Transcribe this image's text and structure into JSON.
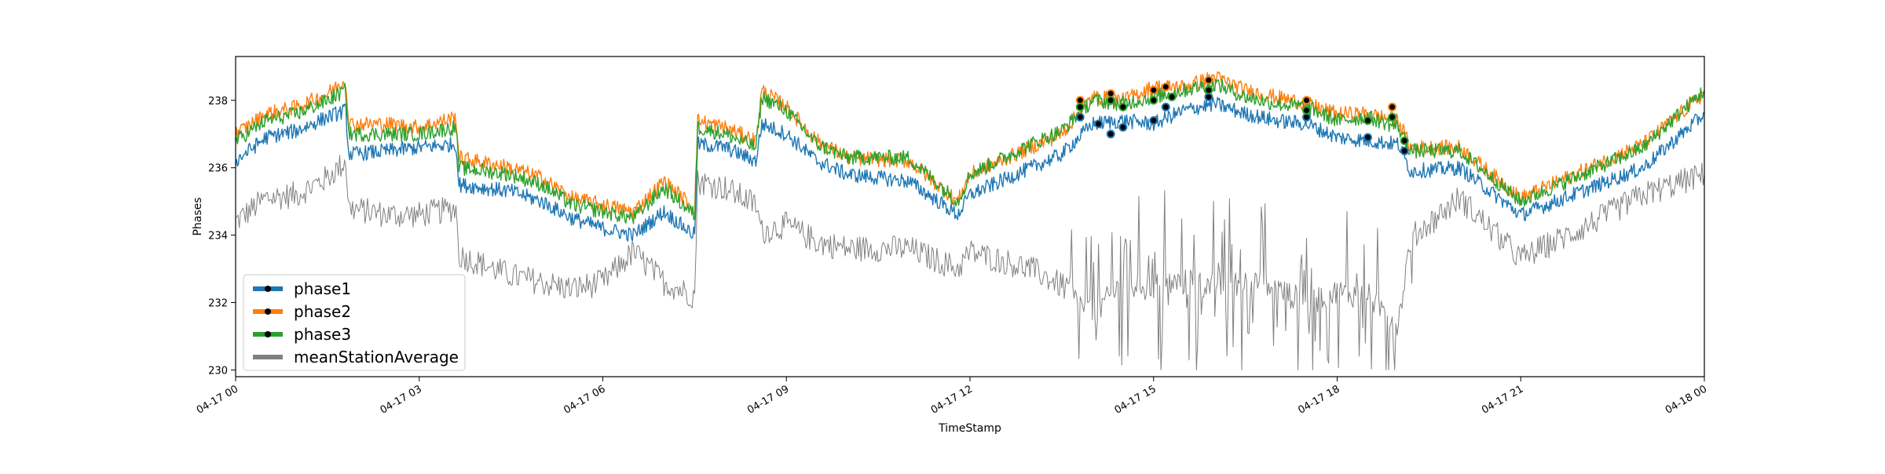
{
  "chart_data": {
    "type": "line",
    "title": "",
    "xlabel": "TimeStamp",
    "ylabel": "Phases",
    "x_range": [
      "04-17 00",
      "04-18 00"
    ],
    "ylim": [
      229.8,
      239.3
    ],
    "x_ticks": [
      {
        "label": "04-17 00",
        "hour": 0
      },
      {
        "label": "04-17 03",
        "hour": 3
      },
      {
        "label": "04-17 06",
        "hour": 6
      },
      {
        "label": "04-17 09",
        "hour": 9
      },
      {
        "label": "04-17 12",
        "hour": 12
      },
      {
        "label": "04-17 15",
        "hour": 15
      },
      {
        "label": "04-17 18",
        "hour": 18
      },
      {
        "label": "04-17 21",
        "hour": 21
      },
      {
        "label": "04-18 00",
        "hour": 24
      }
    ],
    "y_ticks": [
      230,
      232,
      234,
      236,
      238
    ],
    "grid": false,
    "legend": {
      "placement": "lower-left"
    },
    "series": [
      {
        "name": "phase1",
        "color": "#1f77b4",
        "points": [
          [
            0,
            236.2
          ],
          [
            0.5,
            236.9
          ],
          [
            1,
            237.1
          ],
          [
            1.5,
            237.5
          ],
          [
            1.8,
            237.7
          ],
          [
            1.85,
            236.4
          ],
          [
            2.5,
            236.5
          ],
          [
            3,
            236.6
          ],
          [
            3.6,
            236.7
          ],
          [
            3.65,
            235.5
          ],
          [
            4.5,
            235.3
          ],
          [
            5,
            235.0
          ],
          [
            5.5,
            234.5
          ],
          [
            6,
            234.2
          ],
          [
            6.5,
            234.0
          ],
          [
            7,
            234.7
          ],
          [
            7.5,
            234.0
          ],
          [
            7.55,
            236.7
          ],
          [
            8,
            236.6
          ],
          [
            8.5,
            236.2
          ],
          [
            8.6,
            237.3
          ],
          [
            9,
            237.0
          ],
          [
            9.5,
            236.2
          ],
          [
            10,
            235.8
          ],
          [
            11,
            235.6
          ],
          [
            11.8,
            234.6
          ],
          [
            12,
            235.2
          ],
          [
            13,
            236.0
          ],
          [
            13.5,
            236.4
          ],
          [
            14,
            237.3
          ],
          [
            14.5,
            237.4
          ],
          [
            15,
            237.3
          ],
          [
            15.5,
            237.7
          ],
          [
            16,
            237.9
          ],
          [
            16.5,
            237.6
          ],
          [
            17,
            237.4
          ],
          [
            17.5,
            237.3
          ],
          [
            18,
            236.9
          ],
          [
            18.5,
            236.8
          ],
          [
            19,
            236.7
          ],
          [
            19.2,
            235.9
          ],
          [
            20,
            236.0
          ],
          [
            21,
            234.6
          ],
          [
            22,
            235.3
          ],
          [
            23,
            236.0
          ],
          [
            24,
            237.6
          ]
        ]
      },
      {
        "name": "phase2",
        "color": "#ff7f0e",
        "points": [
          [
            0,
            237.0
          ],
          [
            0.5,
            237.6
          ],
          [
            1,
            237.8
          ],
          [
            1.5,
            238.2
          ],
          [
            1.8,
            238.6
          ],
          [
            1.85,
            237.3
          ],
          [
            2.5,
            237.3
          ],
          [
            3,
            237.2
          ],
          [
            3.6,
            237.5
          ],
          [
            3.65,
            236.3
          ],
          [
            4.5,
            236.0
          ],
          [
            5,
            235.7
          ],
          [
            5.5,
            235.1
          ],
          [
            6,
            234.9
          ],
          [
            6.5,
            234.7
          ],
          [
            7,
            235.6
          ],
          [
            7.5,
            234.8
          ],
          [
            7.55,
            237.4
          ],
          [
            8,
            237.2
          ],
          [
            8.5,
            236.8
          ],
          [
            8.6,
            238.3
          ],
          [
            9,
            237.8
          ],
          [
            9.5,
            236.8
          ],
          [
            10,
            236.3
          ],
          [
            11,
            236.2
          ],
          [
            11.8,
            235.0
          ],
          [
            12,
            235.8
          ],
          [
            13,
            236.6
          ],
          [
            13.5,
            237.0
          ],
          [
            14,
            238.1
          ],
          [
            14.5,
            238.0
          ],
          [
            15,
            238.4
          ],
          [
            15.5,
            238.4
          ],
          [
            16,
            238.7
          ],
          [
            16.5,
            238.3
          ],
          [
            17,
            238.1
          ],
          [
            17.5,
            237.9
          ],
          [
            18,
            237.6
          ],
          [
            18.5,
            237.6
          ],
          [
            19,
            237.4
          ],
          [
            19.2,
            236.6
          ],
          [
            20,
            236.6
          ],
          [
            21,
            235.1
          ],
          [
            22,
            235.9
          ],
          [
            23,
            236.7
          ],
          [
            24,
            238.2
          ]
        ]
      },
      {
        "name": "phase3",
        "color": "#2ca02c",
        "points": [
          [
            0,
            236.8
          ],
          [
            0.5,
            237.4
          ],
          [
            1,
            237.6
          ],
          [
            1.5,
            238.0
          ],
          [
            1.8,
            238.3
          ],
          [
            1.85,
            237.0
          ],
          [
            2.5,
            237.0
          ],
          [
            3,
            237.0
          ],
          [
            3.6,
            237.2
          ],
          [
            3.65,
            236.0
          ],
          [
            4.5,
            235.8
          ],
          [
            5,
            235.5
          ],
          [
            5.5,
            234.9
          ],
          [
            6,
            234.7
          ],
          [
            6.5,
            234.5
          ],
          [
            7,
            235.4
          ],
          [
            7.5,
            234.6
          ],
          [
            7.55,
            237.2
          ],
          [
            8,
            237.0
          ],
          [
            8.5,
            236.6
          ],
          [
            8.6,
            238.1
          ],
          [
            9,
            237.7
          ],
          [
            9.5,
            236.7
          ],
          [
            10,
            236.3
          ],
          [
            11,
            236.3
          ],
          [
            11.8,
            235.0
          ],
          [
            12,
            235.8
          ],
          [
            13,
            236.7
          ],
          [
            13.5,
            237.1
          ],
          [
            14,
            238.0
          ],
          [
            14.5,
            237.9
          ],
          [
            15,
            238.1
          ],
          [
            15.5,
            238.3
          ],
          [
            16,
            238.5
          ],
          [
            16.5,
            238.1
          ],
          [
            17,
            237.9
          ],
          [
            17.5,
            237.8
          ],
          [
            18,
            237.4
          ],
          [
            18.5,
            237.5
          ],
          [
            19,
            237.2
          ],
          [
            19.2,
            236.5
          ],
          [
            20,
            236.5
          ],
          [
            21,
            235.0
          ],
          [
            22,
            235.8
          ],
          [
            23,
            236.6
          ],
          [
            24,
            238.3
          ]
        ]
      },
      {
        "name": "meanStationAverage",
        "color": "#808080",
        "points": [
          [
            0,
            234.4
          ],
          [
            0.5,
            235.1
          ],
          [
            1,
            235.2
          ],
          [
            1.5,
            235.7
          ],
          [
            1.8,
            236.2
          ],
          [
            1.85,
            234.8
          ],
          [
            2.5,
            234.6
          ],
          [
            3,
            234.6
          ],
          [
            3.6,
            234.8
          ],
          [
            3.65,
            233.4
          ],
          [
            4.5,
            232.8
          ],
          [
            5,
            232.6
          ],
          [
            5.5,
            232.4
          ],
          [
            6,
            232.6
          ],
          [
            6.5,
            233.5
          ],
          [
            7,
            232.6
          ],
          [
            7.5,
            232.2
          ],
          [
            7.55,
            235.6
          ],
          [
            8,
            235.4
          ],
          [
            8.5,
            234.9
          ],
          [
            8.6,
            234.1
          ],
          [
            9,
            234.3
          ],
          [
            9.5,
            233.8
          ],
          [
            10,
            233.6
          ],
          [
            11,
            233.6
          ],
          [
            11.8,
            233.0
          ],
          [
            12,
            233.5
          ],
          [
            13,
            233.0
          ],
          [
            13.5,
            232.5
          ],
          [
            14,
            231.6
          ],
          [
            14.5,
            232.6
          ],
          [
            15,
            232.5
          ],
          [
            15.5,
            232.6
          ],
          [
            16,
            232.5
          ],
          [
            16.5,
            232.6
          ],
          [
            17,
            232.4
          ],
          [
            17.5,
            232.0
          ],
          [
            18,
            232.3
          ],
          [
            18.5,
            232.2
          ],
          [
            19,
            231.4
          ],
          [
            19.2,
            233.9
          ],
          [
            20,
            235.1
          ],
          [
            21,
            233.3
          ],
          [
            22,
            234.2
          ],
          [
            23,
            235.2
          ],
          [
            24,
            235.8
          ]
        ]
      }
    ],
    "markers": {
      "phase1": [
        [
          13.8,
          237.5
        ],
        [
          14.1,
          237.3
        ],
        [
          14.3,
          237.0
        ],
        [
          14.5,
          237.2
        ],
        [
          15.0,
          237.4
        ],
        [
          15.2,
          237.8
        ],
        [
          15.9,
          238.1
        ],
        [
          17.5,
          237.5
        ],
        [
          18.5,
          236.9
        ],
        [
          19.1,
          236.5
        ]
      ],
      "phase2": [
        [
          13.8,
          238.0
        ],
        [
          14.3,
          238.2
        ],
        [
          15.0,
          238.3
        ],
        [
          15.2,
          238.4
        ],
        [
          15.9,
          238.6
        ],
        [
          17.5,
          238.0
        ],
        [
          18.9,
          237.8
        ]
      ],
      "phase3": [
        [
          13.8,
          237.8
        ],
        [
          14.3,
          238.0
        ],
        [
          14.5,
          237.8
        ],
        [
          15.0,
          238.0
        ],
        [
          15.3,
          238.1
        ],
        [
          15.9,
          238.3
        ],
        [
          17.5,
          237.7
        ],
        [
          18.5,
          237.4
        ],
        [
          18.9,
          237.5
        ],
        [
          19.1,
          236.8
        ]
      ]
    }
  }
}
